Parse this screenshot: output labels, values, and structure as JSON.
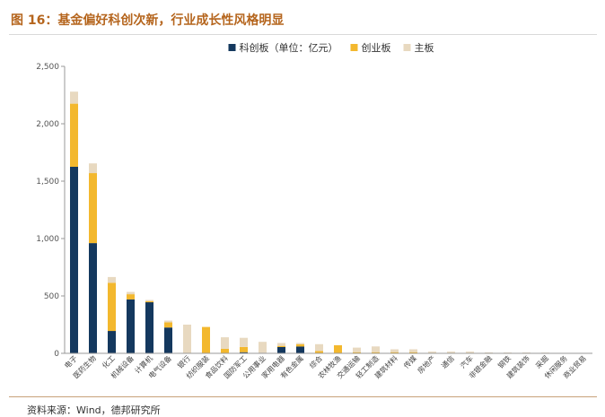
{
  "figure": {
    "title": "图 16：基金偏好科创次新，行业成长性风格明显",
    "source": "资料来源：Wind，德邦研究所"
  },
  "chart_data": {
    "type": "bar",
    "stacked": true,
    "categories": [
      "电子",
      "医药生物",
      "化工",
      "机械设备",
      "计算机",
      "电气设备",
      "银行",
      "纺织服装",
      "食品饮料",
      "国防军工",
      "公用事业",
      "家用电器",
      "有色金属",
      "综合",
      "农林牧渔",
      "交通运输",
      "轻工制造",
      "建筑材料",
      "传媒",
      "房地产",
      "通信",
      "汽车",
      "非银金融",
      "钢铁",
      "建筑装饰",
      "采掘",
      "休闲服务",
      "商业贸易"
    ],
    "series": [
      {
        "name": "科创板（单位：亿元）",
        "color": "#14385e",
        "values": [
          1625,
          960,
          195,
          470,
          445,
          225,
          0,
          0,
          0,
          10,
          5,
          55,
          60,
          0,
          0,
          0,
          0,
          0,
          0,
          0,
          0,
          0,
          0,
          0,
          0,
          0,
          0,
          0
        ]
      },
      {
        "name": "创业板",
        "color": "#f3b82e",
        "values": [
          550,
          610,
          420,
          45,
          10,
          45,
          0,
          230,
          40,
          45,
          0,
          10,
          20,
          20,
          70,
          10,
          10,
          10,
          10,
          5,
          5,
          5,
          3,
          2,
          2,
          2,
          1,
          1
        ]
      },
      {
        "name": "主板",
        "color": "#e8d9c0",
        "values": [
          105,
          85,
          50,
          20,
          10,
          15,
          250,
          0,
          100,
          80,
          95,
          25,
          10,
          60,
          0,
          40,
          50,
          25,
          25,
          10,
          10,
          10,
          5,
          5,
          5,
          4,
          3,
          2
        ]
      }
    ],
    "ylim": [
      0,
      2500
    ],
    "yticks": [
      0,
      500,
      1000,
      1500,
      2000,
      2500
    ],
    "ytick_labels": [
      "0",
      "500",
      "1,000",
      "1,500",
      "2,000",
      "2,500"
    ],
    "legend_position": "top-center",
    "grid": false
  }
}
